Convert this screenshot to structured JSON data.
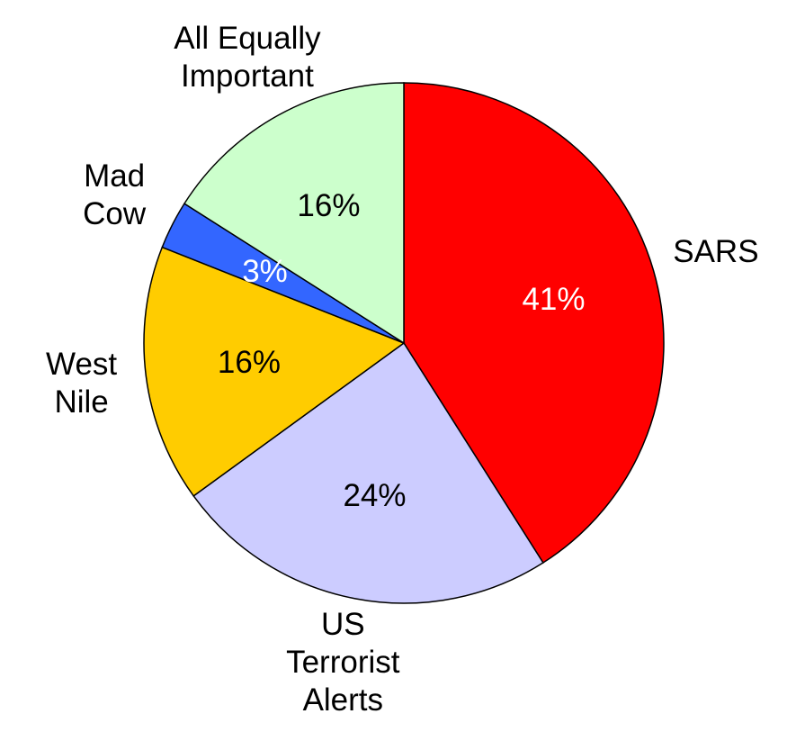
{
  "chart_data": {
    "type": "pie",
    "categories": [
      "SARS",
      "US\nTerrorist\nAlerts",
      "West\nNile",
      "Mad\nCow",
      "All Equally\nImportant"
    ],
    "values": [
      41,
      24,
      16,
      3,
      16
    ],
    "value_labels": [
      "41%",
      "24%",
      "16%",
      "3%",
      "16%"
    ],
    "colors": [
      "#ff0000",
      "#ccccff",
      "#ffcc00",
      "#3366ff",
      "#ccffcc"
    ],
    "value_label_colors": [
      "#ffffff",
      "#000000",
      "#000000",
      "#ffffff",
      "#000000"
    ]
  }
}
